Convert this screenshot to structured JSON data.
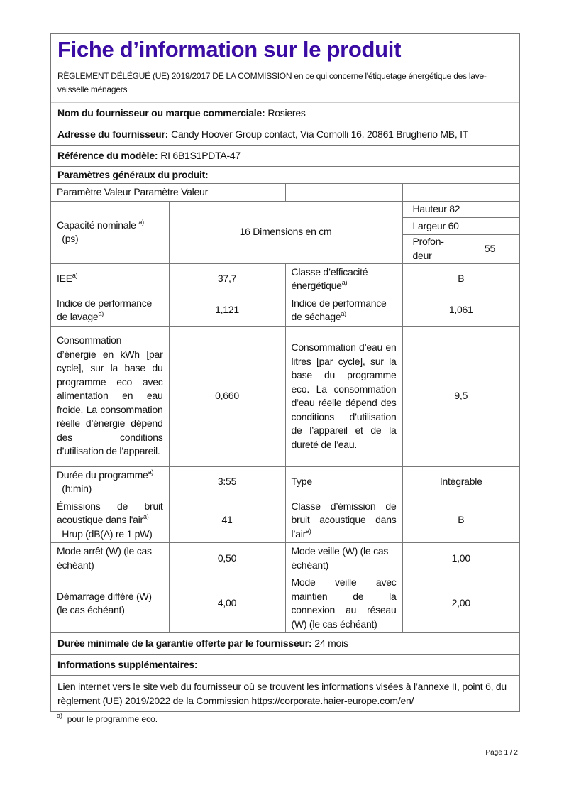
{
  "title": "Fiche d’information sur le produit",
  "regulation": "RÈGLEMENT DÉLÉGUÉ (UE) 2019/2017 DE LA COMMISSION en ce qui concerne l'étiquetage énergétique des lave-vaisselle ménagers",
  "supplier": {
    "label": "Nom du fournisseur ou marque commerciale:",
    "value": "Rosieres"
  },
  "address": {
    "label": "Adresse du fournisseur:",
    "value": "Candy Hoover Group contact, Via Comolli 16, 20861 Brugherio MB, IT"
  },
  "model": {
    "label": "Référence du modèle:",
    "value": "RI 6B1S1PDTA-47"
  },
  "general_params": "Paramètres généraux du produit:",
  "table_header": "Paramètre Valeur Paramètre Valeur",
  "rows": {
    "capacity": {
      "label": "Capacité  nominale",
      "sup": "a)",
      "unit": "(ps)",
      "value": "16 Dimensions en cm"
    },
    "dims": {
      "height": "Hauteur 82",
      "width": "Largeur 60",
      "depth_label": "Profon-deur",
      "depth_value": "55"
    },
    "iee": {
      "label": "IEE",
      "sup": "a)",
      "value": "37,7",
      "label2": "Classe  d’efficacité énergétique",
      "value2": "B"
    },
    "perf": {
      "label": "Indice de performance de lavage",
      "sup": "a)",
      "value": "1,121",
      "label2": "Indice de performance de séchage",
      "value2": "1,061"
    },
    "energy": {
      "label": "Consommation d’énergie en kWh [par cycle], sur la base du programme eco avec alimentation en eau froide. La consommation réelle d’énergie dépend des conditions d’utilisation de l’appareil.",
      "value": "0,660",
      "label2": "Consommation d’eau en litres [par cycle], sur la base du programme eco. La consommation d’eau réelle dépend des conditions d’utilisation de l’appareil et de la dureté de l’eau.",
      "value2": "9,5"
    },
    "duration": {
      "label": "Durée du programme",
      "sup": "a)",
      "unit": "(h:min)",
      "value": "3:55",
      "label2": "Type",
      "value2": "Intégrable"
    },
    "noise": {
      "label": "Émissions de bruit acoustique dans l'air",
      "sup": "a)",
      "unit": "Hrup (dB(A) re 1 pW)",
      "value": "41",
      "label2": "Classe d’émission de bruit acoustique dans l’air",
      "value2": "B"
    },
    "off": {
      "label": "Mode arrêt (W) (le cas échéant)",
      "value": "0,50",
      "label2": "Mode veille (W) (le cas échéant)",
      "value2": "1,00"
    },
    "delay": {
      "label": "Démarrage différé (W) (le cas échéant)",
      "value": "4,00",
      "label2": "Mode veille avec maintien de la connexion au réseau (W) (le cas échéant)",
      "value2": "2,00"
    }
  },
  "warranty": {
    "label": "Durée minimale de la garantie offerte par le fournisseur:",
    "value": "24 mois"
  },
  "additional": "Informations supplémentaires:",
  "link_text": "Lien internet vers le site web du fournisseur où se trouvent les informations visées à l’annexe II, point 6, du règlement (UE) 2019/2022 de la Commission https://corporate.haier-europe.com/en/",
  "footnote": {
    "mark": "a)",
    "text": "pour le programme eco."
  },
  "page": "Page 1 / 2",
  "colors": {
    "title": "#3a0ca3"
  }
}
